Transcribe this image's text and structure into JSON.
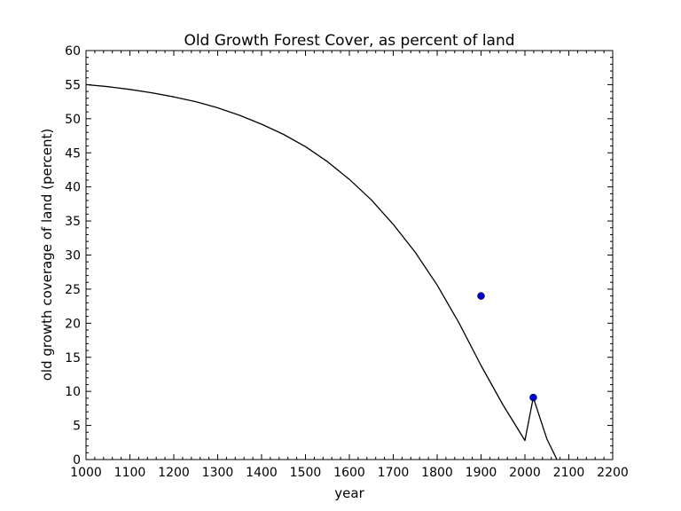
{
  "chart_data": {
    "type": "line",
    "title": "Old Growth Forest Cover, as percent of land",
    "xlabel": "year",
    "ylabel": "old growth coverage of land (percent)",
    "xlim": [
      1000,
      2200
    ],
    "ylim": [
      0,
      60
    ],
    "xticks": [
      1000,
      1100,
      1200,
      1300,
      1400,
      1500,
      1600,
      1700,
      1800,
      1900,
      2000,
      2100,
      2200
    ],
    "yticks": [
      0,
      5,
      10,
      15,
      20,
      25,
      30,
      35,
      40,
      45,
      50,
      55,
      60
    ],
    "grid": false,
    "series": [
      {
        "kind": "line",
        "color": "#000000",
        "x": [
          1000,
          1050,
          1100,
          1150,
          1200,
          1250,
          1300,
          1350,
          1400,
          1450,
          1500,
          1550,
          1600,
          1650,
          1700,
          1750,
          1800,
          1850,
          1900,
          1950,
          2000,
          2019,
          2050,
          2073
        ],
        "y": [
          55.0,
          54.7,
          54.3,
          53.8,
          53.2,
          52.5,
          51.6,
          50.5,
          49.2,
          47.7,
          45.9,
          43.7,
          41.1,
          38.1,
          34.5,
          30.4,
          25.6,
          20.0,
          13.8,
          8.0,
          2.8,
          9.1,
          3.0,
          0.0
        ]
      },
      {
        "kind": "points",
        "color": "#0000cc",
        "x": [
          1900,
          2019
        ],
        "y": [
          24.0,
          9.1
        ]
      }
    ]
  }
}
